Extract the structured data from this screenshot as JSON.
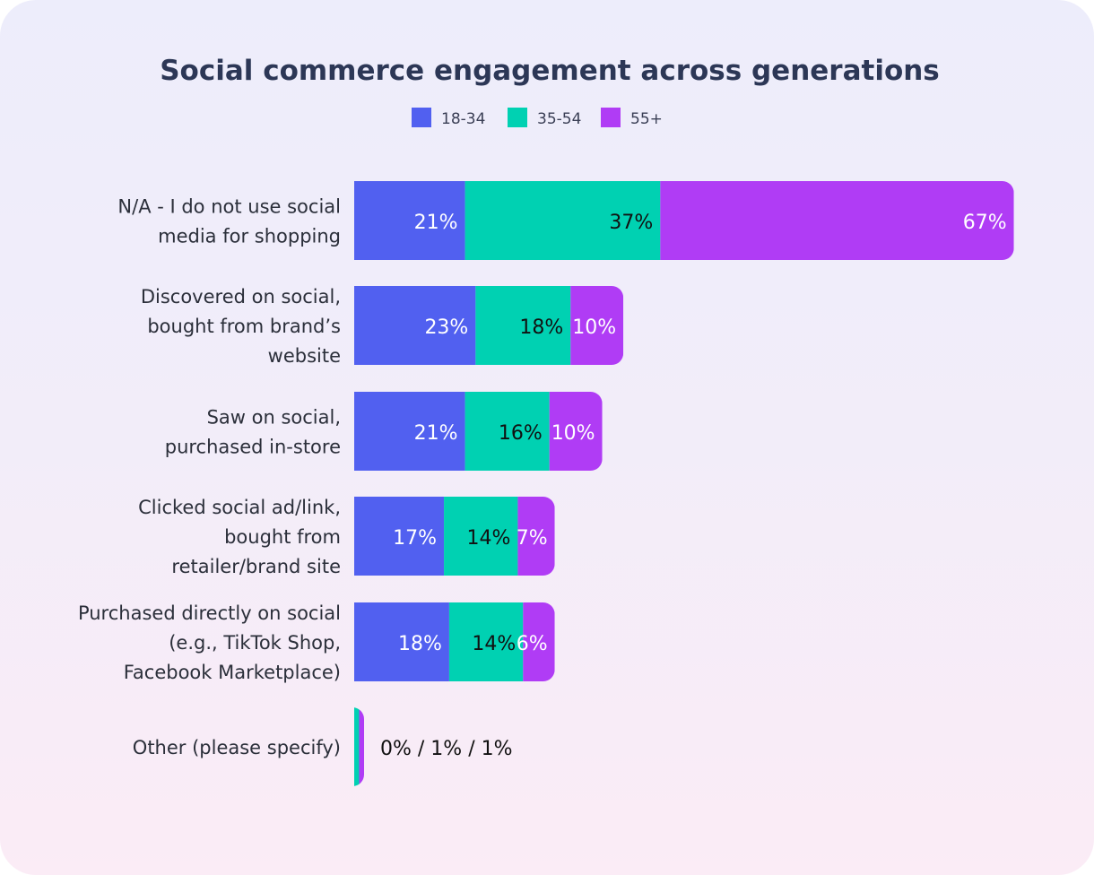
{
  "chart_data": {
    "type": "bar",
    "orientation": "horizontal",
    "stacked": true,
    "title": "Social commerce engagement across generations",
    "legend_position": "top",
    "grid": false,
    "categories": [
      "N/A - I do not use social media for shopping",
      "Discovered on social, bought from brand’s website",
      "Saw on social, purchased in-store",
      "Clicked social ad/link, bought from retailer/brand site",
      "Purchased directly on social (e.g., TikTok Shop, Facebook Marketplace)",
      "Other (please specify)"
    ],
    "category_lines": [
      [
        "N/A - I do not use social",
        "media for shopping"
      ],
      [
        "Discovered on social,",
        "bought from brand’s",
        "website"
      ],
      [
        "Saw on social,",
        "purchased in-store"
      ],
      [
        "Clicked social ad/link,",
        "bought from",
        "retailer/brand site"
      ],
      [
        "Purchased directly on social",
        "(e.g., TikTok Shop,",
        "Facebook Marketplace)"
      ],
      [
        "Other (please specify)"
      ]
    ],
    "series": [
      {
        "name": "18-34",
        "color": "#5160f0",
        "values": [
          21,
          23,
          21,
          17,
          18,
          0
        ]
      },
      {
        "name": "35-54",
        "color": "#00d1b2",
        "values": [
          37,
          18,
          16,
          14,
          14,
          1
        ]
      },
      {
        "name": "55+",
        "color": "#b03cf5",
        "values": [
          67,
          10,
          10,
          7,
          6,
          1
        ]
      }
    ],
    "other_label": "0% / 1% / 1%",
    "unit": "%"
  }
}
